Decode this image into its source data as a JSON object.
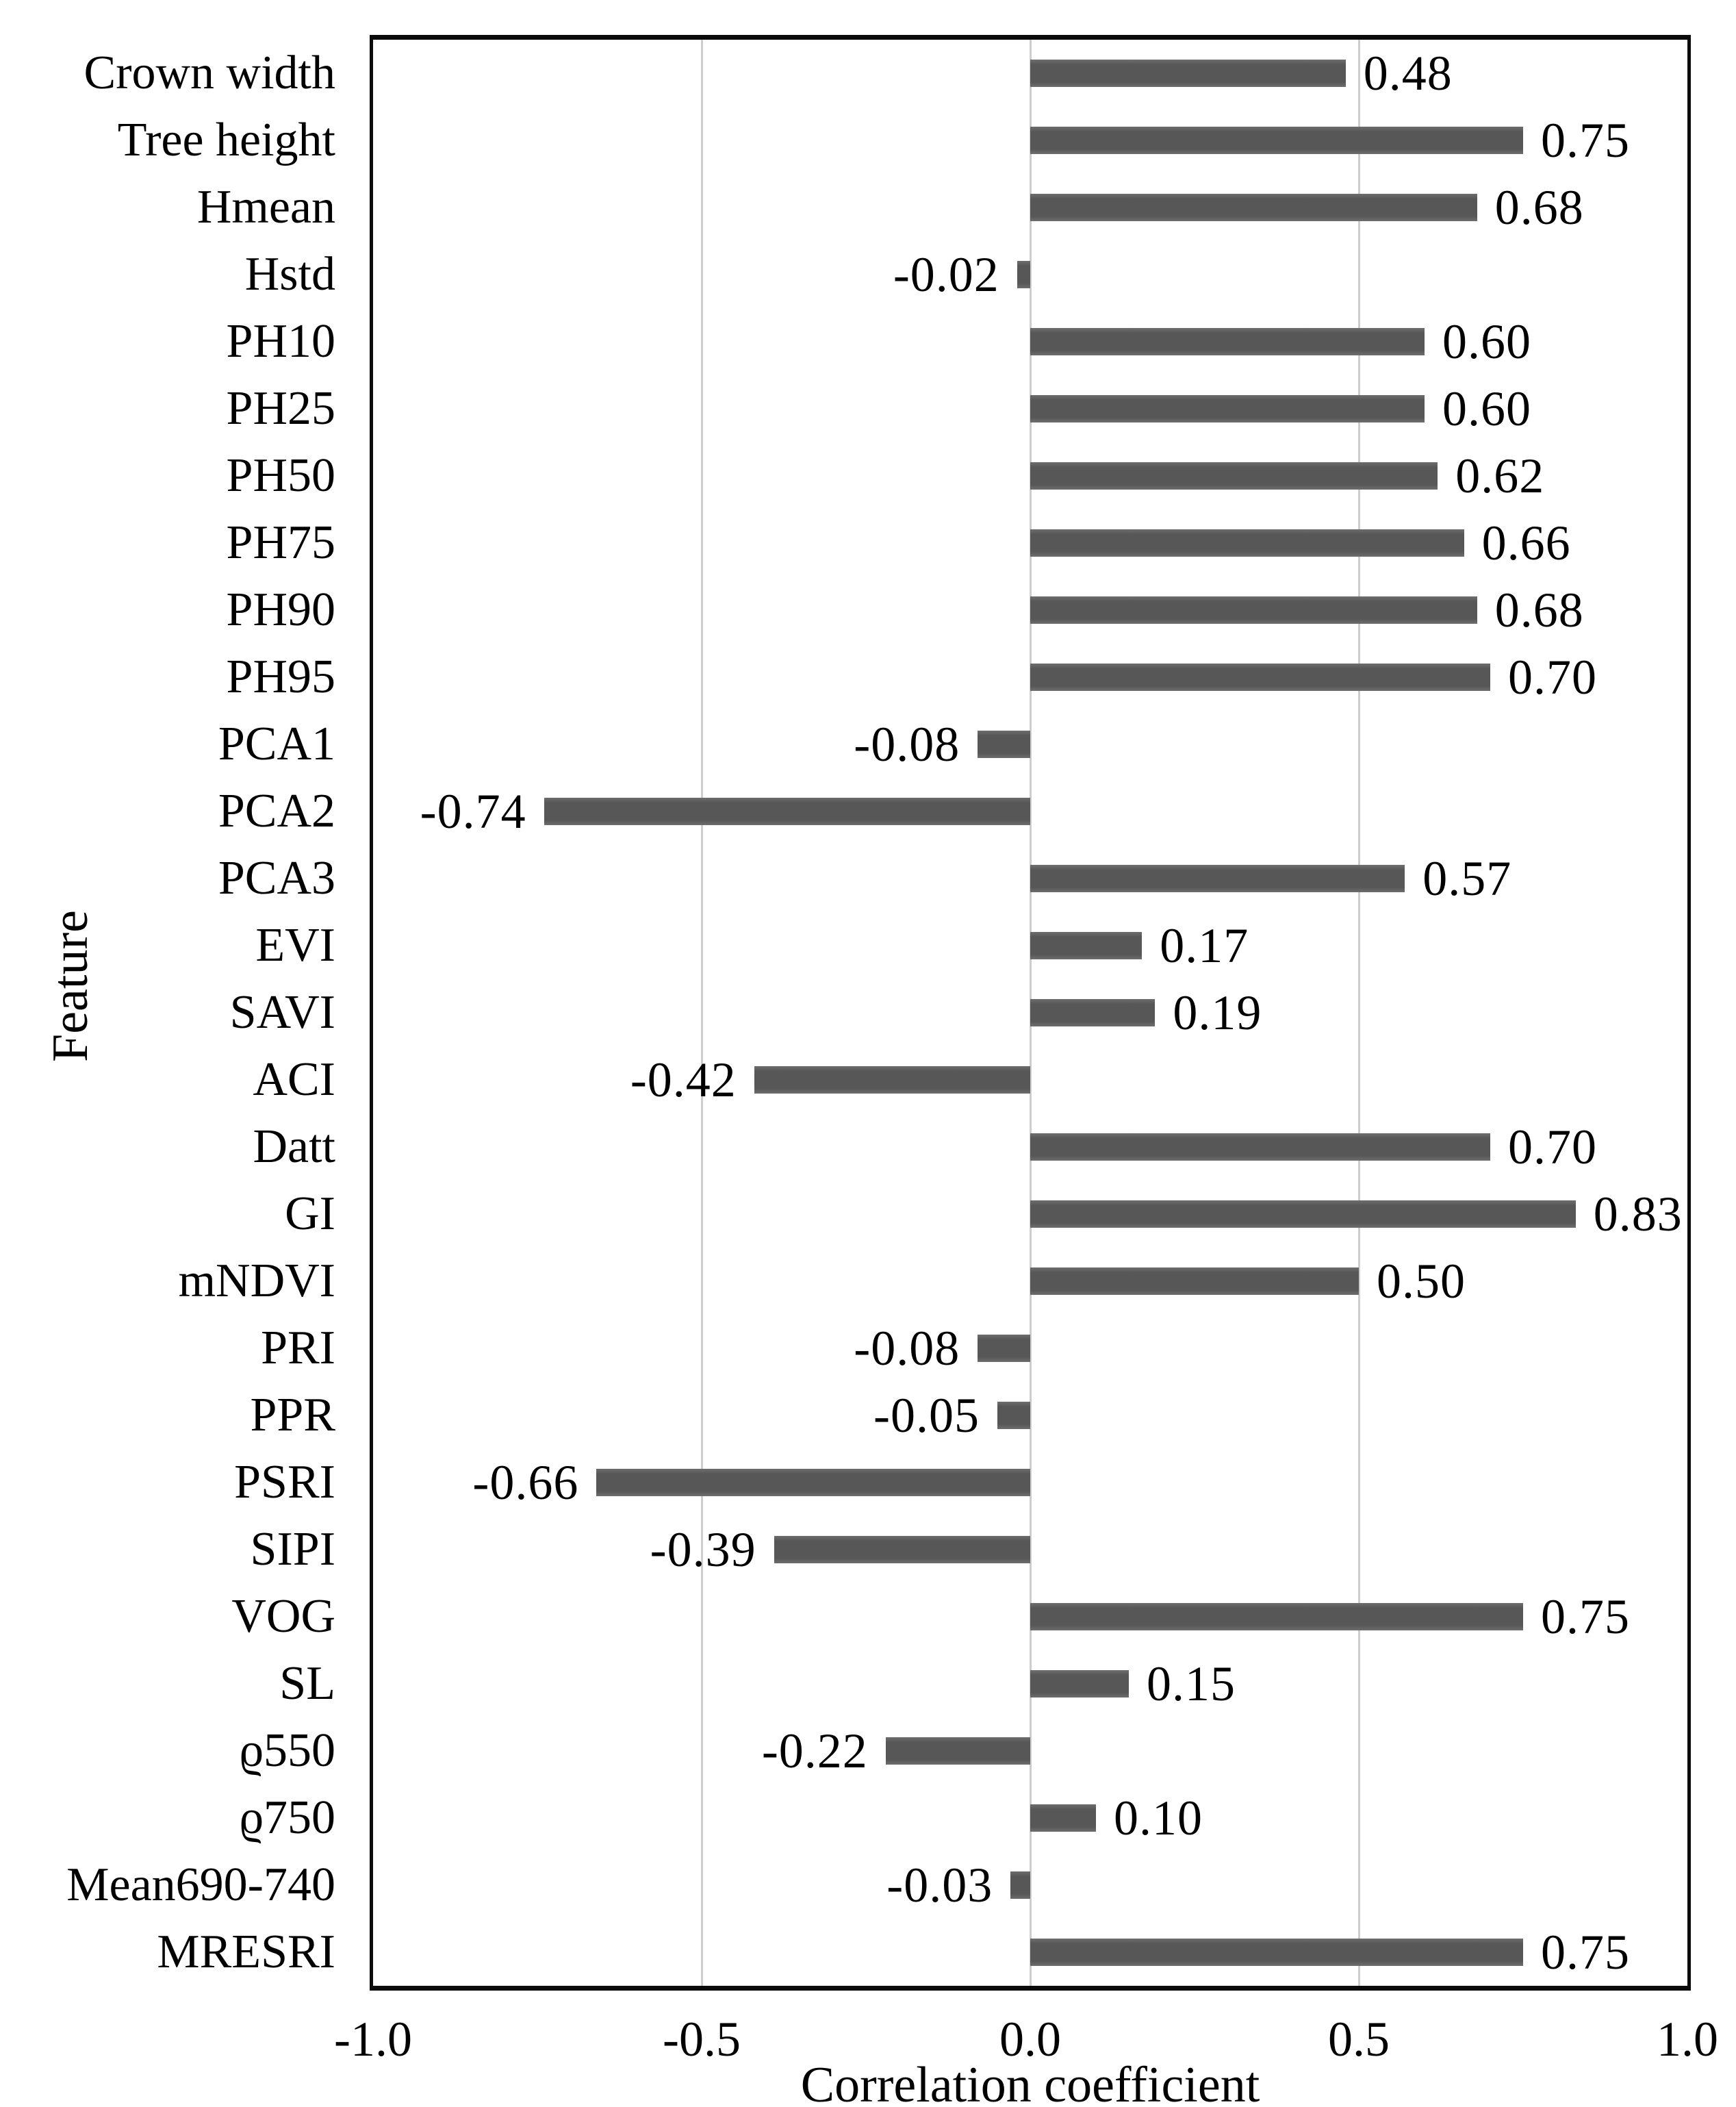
{
  "figure": {
    "background_color": "#ffffff",
    "border_color": "#0b0b0b",
    "text_color": "#000000"
  },
  "chart_data": {
    "type": "bar",
    "orientation": "horizontal",
    "title": "",
    "xlabel": "Correlation coefficient",
    "ylabel": "Feature",
    "xlim": [
      -1.0,
      1.0
    ],
    "xticks": [
      {
        "value": -1.0,
        "label": "-1.0"
      },
      {
        "value": -0.5,
        "label": "-0.5"
      },
      {
        "value": 0.0,
        "label": "0.0"
      },
      {
        "value": 0.5,
        "label": "0.5"
      },
      {
        "value": 1.0,
        "label": "1.0"
      }
    ],
    "gridlines_x": [
      -0.5,
      0.0,
      0.5
    ],
    "legend_position": "none",
    "bar_color": "#5a5a5a",
    "gridline_color": "#cdcdcd",
    "categories": [
      "Crown width",
      "Tree height",
      "Hmean",
      "Hstd",
      "PH10",
      "PH25",
      "PH50",
      "PH75",
      "PH90",
      "PH95",
      "PCA1",
      "PCA2",
      "PCA3",
      "EVI",
      "SAVI",
      "ACI",
      "Datt",
      "GI",
      "mNDVI",
      "PRI",
      "PPR",
      "PSRI",
      "SIPI",
      "VOG",
      "SL",
      "ϱ550",
      "ϱ750",
      "Mean690-740",
      "MRESRI"
    ],
    "values": [
      0.48,
      0.75,
      0.68,
      -0.02,
      0.6,
      0.6,
      0.62,
      0.66,
      0.68,
      0.7,
      -0.08,
      -0.74,
      0.57,
      0.17,
      0.19,
      -0.42,
      0.7,
      0.83,
      0.5,
      -0.08,
      -0.05,
      -0.66,
      -0.39,
      0.75,
      0.15,
      -0.22,
      0.1,
      -0.03,
      0.75
    ],
    "value_labels": [
      "0.48",
      "0.75",
      "0.68",
      "-0.02",
      "0.60",
      "0.60",
      "0.62",
      "0.66",
      "0.68",
      "0.70",
      "-0.08",
      "-0.74",
      "0.57",
      "0.17",
      "0.19",
      "-0.42",
      "0.70",
      "0.83",
      "0.50",
      "-0.08",
      "-0.05",
      "-0.66",
      "-0.39",
      "0.75",
      "0.15",
      "-0.22",
      "0.10",
      "-0.03",
      "0.75"
    ]
  }
}
